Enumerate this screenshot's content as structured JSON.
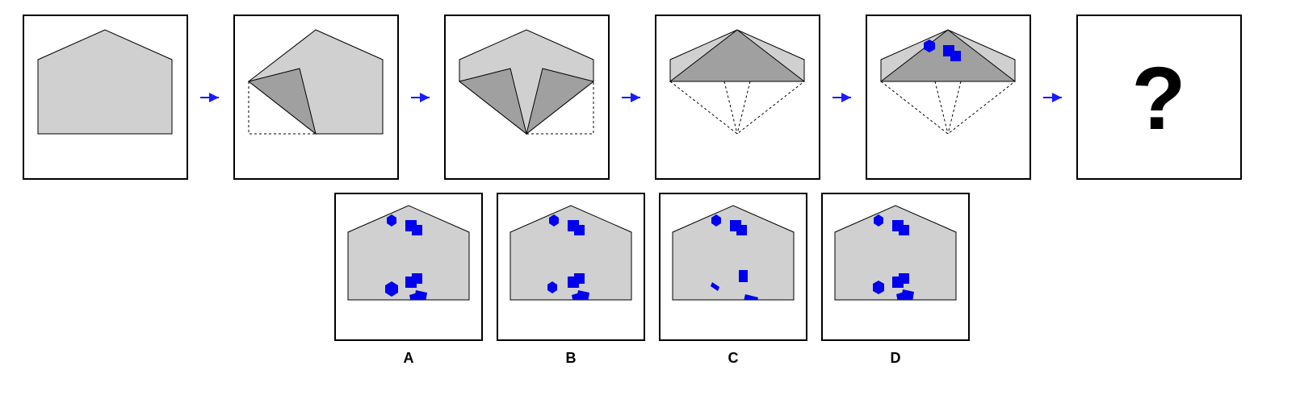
{
  "question_mark": "?",
  "options": [
    {
      "label": "A"
    },
    {
      "label": "B"
    },
    {
      "label": "C"
    },
    {
      "label": "D"
    }
  ],
  "colors": {
    "paper_fill": "#d0d0d0",
    "fold_fill": "#a0a0a0",
    "shape_fill": "#0000ee",
    "arrow": "#1a1aff",
    "frame": "#000000"
  },
  "icons": [
    "arrow-right-icon"
  ]
}
